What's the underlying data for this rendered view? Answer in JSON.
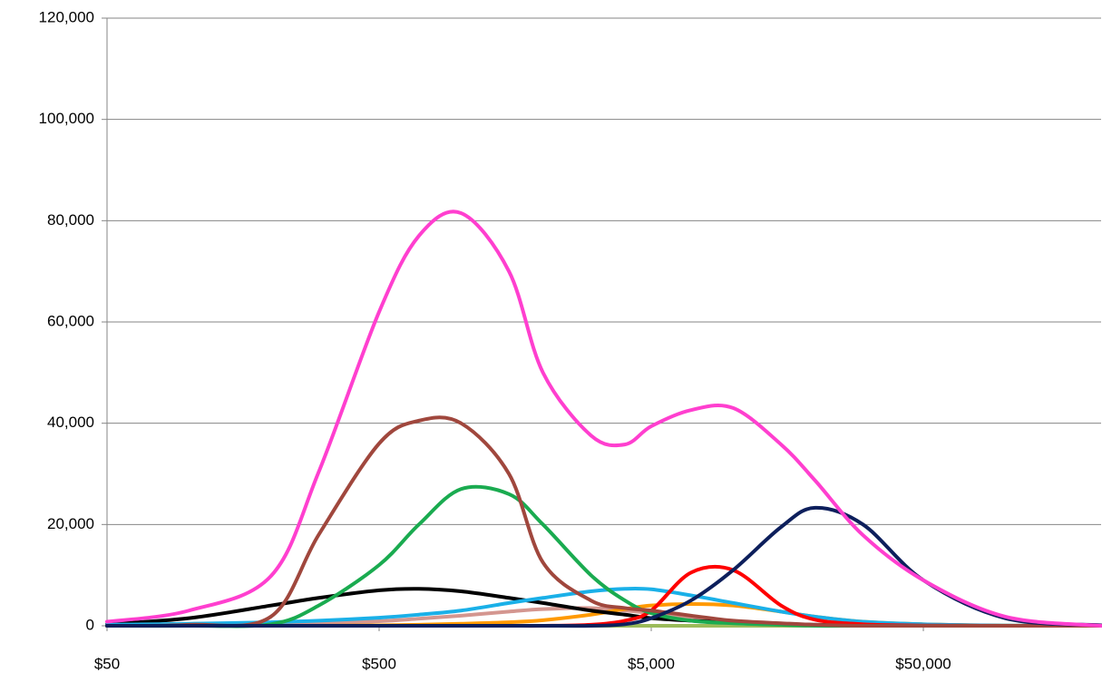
{
  "chart_data": {
    "type": "line",
    "xscale": "log",
    "grid": true,
    "x": [
      50,
      100,
      200,
      300,
      500,
      700,
      1000,
      1500,
      2000,
      3000,
      4000,
      5000,
      7000,
      10000,
      15000,
      20000,
      30000,
      50000,
      100000,
      225000
    ],
    "xlim": [
      50,
      225000
    ],
    "xticks": [
      {
        "value": 50,
        "label": "$50"
      },
      {
        "value": 500,
        "label": "$500"
      },
      {
        "value": 5000,
        "label": "$5,000"
      },
      {
        "value": 50000,
        "label": "$50,000"
      }
    ],
    "ylim": [
      0,
      120000
    ],
    "yticks": [
      0,
      {
        "value": 20000,
        "label": "20,000"
      },
      {
        "value": 40000,
        "label": "40,000"
      },
      {
        "value": 60000,
        "label": "60,000"
      },
      {
        "value": 80000,
        "label": "80,000"
      },
      {
        "value": 100000,
        "label": "100,000"
      },
      {
        "value": 120000,
        "label": "120,000"
      }
    ],
    "series": [
      {
        "color": "#9bbb59",
        "values": [
          0,
          0,
          0,
          0,
          0,
          0,
          0,
          0,
          0,
          0,
          0,
          0,
          0,
          0,
          0,
          0,
          0,
          0,
          0,
          0
        ]
      },
      {
        "color": "#d4968f",
        "values": [
          0,
          100,
          300,
          500,
          900,
          1400,
          2000,
          2800,
          3300,
          3500,
          3000,
          2500,
          1500,
          800,
          400,
          200,
          100,
          0,
          0,
          0
        ]
      },
      {
        "color": "#ff9900",
        "values": [
          0,
          0,
          0,
          0,
          100,
          200,
          400,
          700,
          1100,
          2200,
          3300,
          4000,
          4300,
          4000,
          2800,
          1800,
          800,
          300,
          50,
          0
        ]
      },
      {
        "color": "#000000",
        "values": [
          300,
          1500,
          4000,
          5500,
          7000,
          7300,
          6800,
          5500,
          4500,
          3000,
          2200,
          1500,
          1000,
          600,
          300,
          200,
          100,
          0,
          0,
          0
        ]
      },
      {
        "color": "#1ab0e8",
        "values": [
          200,
          400,
          700,
          1000,
          1600,
          2200,
          3000,
          4500,
          5500,
          6800,
          7300,
          7200,
          6000,
          4500,
          2800,
          1800,
          800,
          300,
          50,
          0
        ]
      },
      {
        "color": "#ff0000",
        "values": [
          0,
          0,
          0,
          0,
          0,
          0,
          0,
          0,
          0,
          200,
          1000,
          3000,
          10500,
          11000,
          4000,
          1200,
          300,
          50,
          0,
          0
        ]
      },
      {
        "color": "#1aab50",
        "values": [
          0,
          0,
          300,
          4000,
          12000,
          20000,
          27000,
          26000,
          20000,
          10000,
          5000,
          2500,
          1000,
          500,
          200,
          0,
          0,
          0,
          0,
          0
        ]
      },
      {
        "color": "#a0473d",
        "values": [
          0,
          200,
          1800,
          18000,
          36000,
          40500,
          40000,
          30000,
          12500,
          5000,
          3500,
          3000,
          2000,
          1000,
          500,
          200,
          0,
          0,
          0,
          0
        ]
      },
      {
        "color": "#0d1f5c",
        "values": [
          0,
          0,
          0,
          0,
          0,
          0,
          0,
          0,
          0,
          0,
          300,
          1500,
          5000,
          11000,
          19500,
          23300,
          20000,
          9000,
          1500,
          100
        ]
      },
      {
        "color": "#ff3fcf",
        "values": [
          800,
          3000,
          9800,
          30400,
          62000,
          77000,
          81500,
          70000,
          50000,
          37600,
          35800,
          39400,
          42600,
          43000,
          35800,
          28700,
          17900,
          9000,
          1800,
          0
        ]
      }
    ]
  }
}
